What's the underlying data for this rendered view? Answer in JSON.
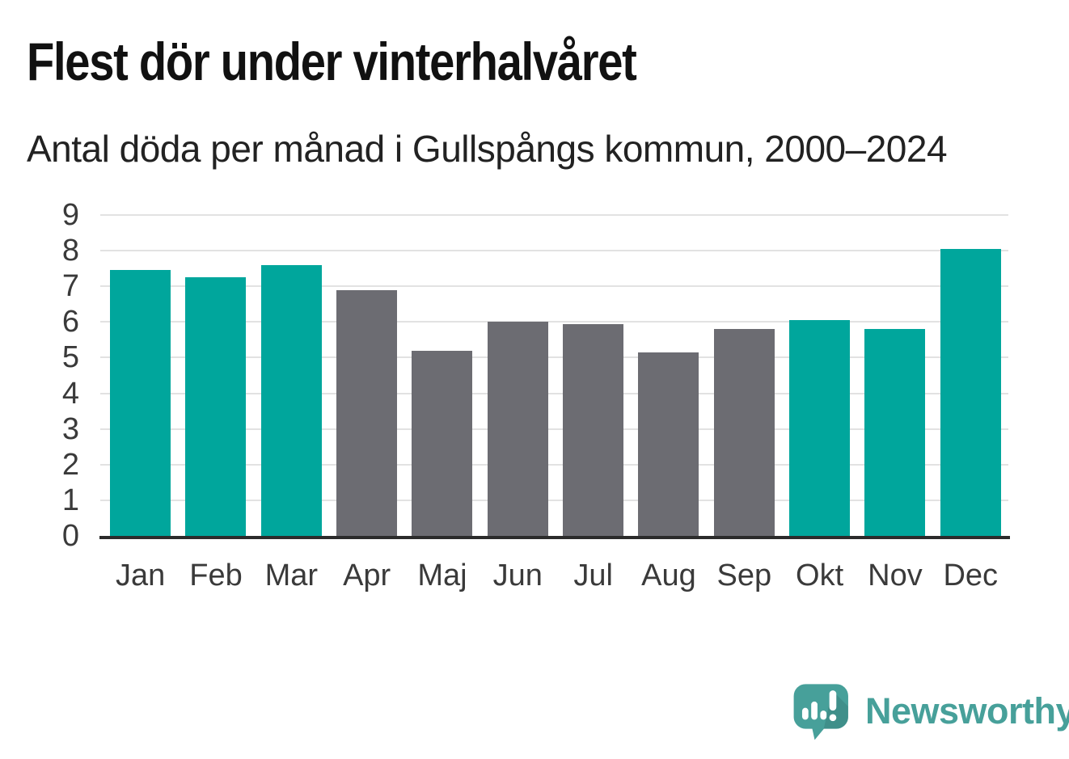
{
  "title": "Flest dör under vinterhalvåret",
  "subtitle": "Antal döda per månad i Gullspångs kommun, 2000–2024",
  "colors": {
    "winter_bar": "#00A69C",
    "summer_bar": "#6C6C72",
    "gridline": "#E2E2E2",
    "baseline": "#2B2B2B",
    "axis_text": "#3A3A3A",
    "title_text": "#111111",
    "subtitle_text": "#222222",
    "logo_teal": "#47A09A"
  },
  "chart_data": {
    "type": "bar",
    "title": "Flest dör under vinterhalvåret",
    "subtitle": "Antal döda per månad i Gullspångs kommun, 2000–2024",
    "categories": [
      "Jan",
      "Feb",
      "Mar",
      "Apr",
      "Maj",
      "Jun",
      "Jul",
      "Aug",
      "Sep",
      "Okt",
      "Nov",
      "Dec"
    ],
    "values": [
      7.45,
      7.25,
      7.6,
      6.9,
      5.2,
      6.0,
      5.95,
      5.15,
      5.8,
      6.05,
      5.8,
      8.05
    ],
    "bar_colors": [
      "winter",
      "winter",
      "winter",
      "summer",
      "summer",
      "summer",
      "summer",
      "summer",
      "summer",
      "winter",
      "winter",
      "winter"
    ],
    "xlabel": "",
    "ylabel": "",
    "ylim": [
      0,
      9
    ],
    "yticks": [
      0,
      1,
      2,
      3,
      4,
      5,
      6,
      7,
      8,
      9
    ],
    "grid": true,
    "legend": false
  },
  "branding": {
    "logo_text": "Newsworthy",
    "logo_icon": "newsworthy-speech-bubble-bar-chart-icon"
  }
}
